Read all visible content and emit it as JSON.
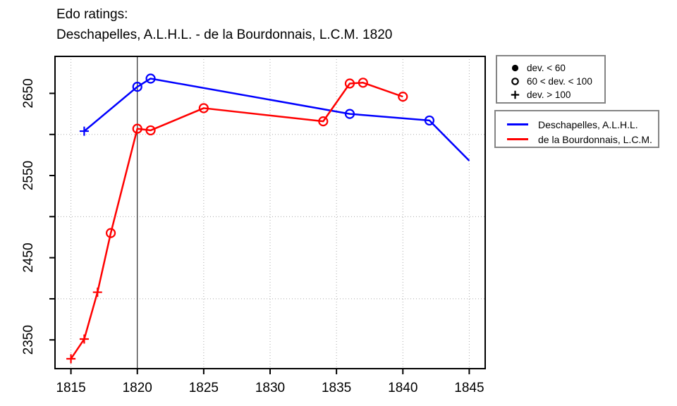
{
  "title": {
    "line1": "Edo ratings:",
    "line2": "Deschapelles, A.L.H.L. - de la Bourdonnais, L.C.M. 1820"
  },
  "colors": {
    "deschapelles": "#0000ff",
    "bourdonnais": "#ff0000",
    "grid": "#aaaaaa",
    "frame": "#000000",
    "event_line": "#000000",
    "legend_border": "#848484"
  },
  "dev_legend": {
    "items": [
      {
        "marker": "filled-circle",
        "label": "dev. < 60"
      },
      {
        "marker": "open-circle",
        "label": "60 < dev. < 100"
      },
      {
        "marker": "plus",
        "label": "dev. > 100"
      }
    ]
  },
  "series_legend": {
    "items": [
      {
        "color": "#0000ff",
        "label": "Deschapelles, A.L.H.L."
      },
      {
        "color": "#ff0000",
        "label": "de la Bourdonnais, L.C.M."
      }
    ]
  },
  "chart_data": {
    "type": "line",
    "title": "Edo ratings: Deschapelles, A.L.H.L. - de la Bourdonnais, L.C.M. 1820",
    "xlabel": "",
    "ylabel": "",
    "xlim": [
      1813.8,
      1846.2
    ],
    "ylim": [
      2315,
      2695
    ],
    "x_ticks": [
      1815,
      1820,
      1825,
      1830,
      1835,
      1840,
      1845
    ],
    "y_ticks": [
      2350,
      2400,
      2450,
      2500,
      2550,
      2600,
      2650
    ],
    "y_tick_labels": [
      2350,
      2450,
      2550,
      2650
    ],
    "x_gridlines": [
      1815,
      1825,
      1830,
      1835,
      1840,
      1845
    ],
    "y_gridlines": [
      2400,
      2500,
      2600
    ],
    "event_vline_x": 1820,
    "grid_on": true,
    "legend_position": "outside-right",
    "series": [
      {
        "name": "Deschapelles, A.L.H.L.",
        "color": "#0000ff",
        "points": [
          {
            "year": 1816,
            "rating": 2604,
            "marker": "plus"
          },
          {
            "year": 1820,
            "rating": 2658,
            "marker": "open-circle"
          },
          {
            "year": 1821,
            "rating": 2668,
            "marker": "open-circle"
          },
          {
            "year": 1836,
            "rating": 2625,
            "marker": "open-circle"
          },
          {
            "year": 1842,
            "rating": 2617,
            "marker": "open-circle"
          },
          {
            "year": 1845,
            "rating": 2568,
            "marker": "none"
          }
        ]
      },
      {
        "name": "de la Bourdonnais, L.C.M.",
        "color": "#ff0000",
        "points": [
          {
            "year": 1815,
            "rating": 2327,
            "marker": "plus"
          },
          {
            "year": 1816,
            "rating": 2351,
            "marker": "plus"
          },
          {
            "year": 1817,
            "rating": 2408,
            "marker": "plus"
          },
          {
            "year": 1818,
            "rating": 2480,
            "marker": "open-circle"
          },
          {
            "year": 1820,
            "rating": 2607,
            "marker": "open-circle"
          },
          {
            "year": 1821,
            "rating": 2605,
            "marker": "open-circle"
          },
          {
            "year": 1825,
            "rating": 2632,
            "marker": "open-circle"
          },
          {
            "year": 1834,
            "rating": 2616,
            "marker": "open-circle"
          },
          {
            "year": 1836,
            "rating": 2662,
            "marker": "open-circle"
          },
          {
            "year": 1837,
            "rating": 2663,
            "marker": "open-circle"
          },
          {
            "year": 1840,
            "rating": 2646,
            "marker": "open-circle"
          }
        ]
      }
    ]
  }
}
